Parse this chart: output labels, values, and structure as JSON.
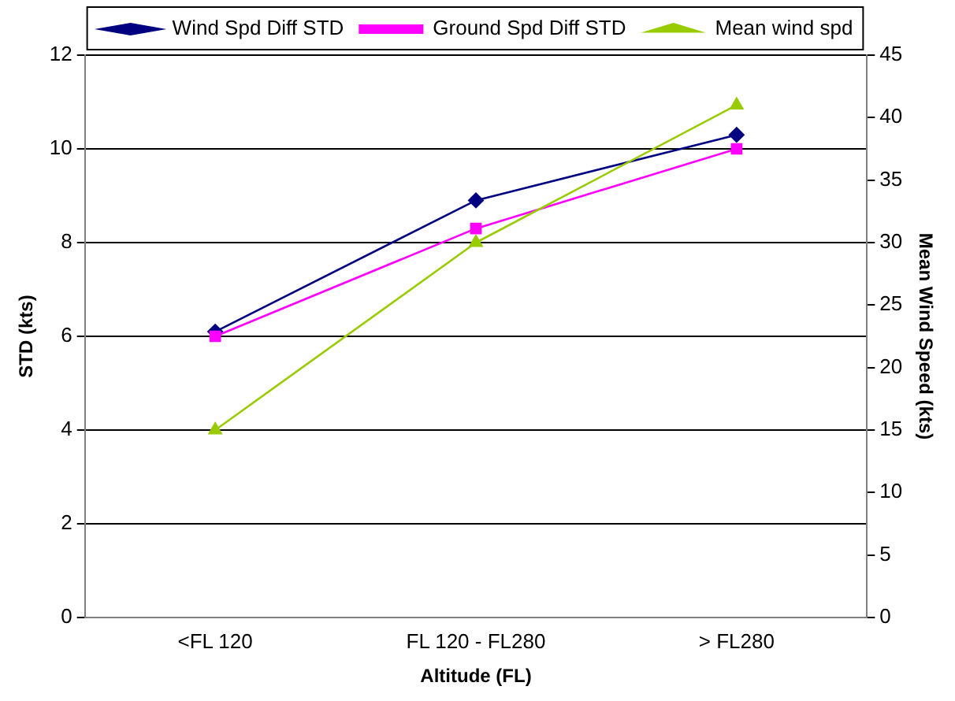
{
  "chart_data": {
    "type": "line",
    "xlabel": "Altitude (FL)",
    "ylabel": "STD (kts)",
    "y2label": "Mean Wind Speed (kts)",
    "categories": [
      "<FL 120",
      "FL 120 - FL280",
      "> FL280"
    ],
    "series": [
      {
        "name": "Wind Spd Diff STD",
        "color": "#000080",
        "marker": "diamond",
        "values": [
          6.1,
          8.9,
          10.3
        ]
      },
      {
        "name": "Ground Spd Diff STD",
        "color": "#ff00ff",
        "marker": "square",
        "values": [
          6.0,
          8.3,
          10.0
        ]
      },
      {
        "name": "Mean wind spd",
        "color": "#99cc00",
        "marker": "triangle",
        "axis": "y2",
        "values": [
          15,
          30,
          41
        ]
      }
    ],
    "ylim": [
      0,
      12
    ],
    "yticks": [
      0,
      2,
      4,
      6,
      8,
      10,
      12
    ],
    "y2lim": [
      0,
      45
    ],
    "y2ticks": [
      0,
      5,
      10,
      15,
      20,
      25,
      30,
      35,
      40,
      45
    ],
    "grid": "y",
    "legend": "top",
    "line_style": "solid"
  }
}
